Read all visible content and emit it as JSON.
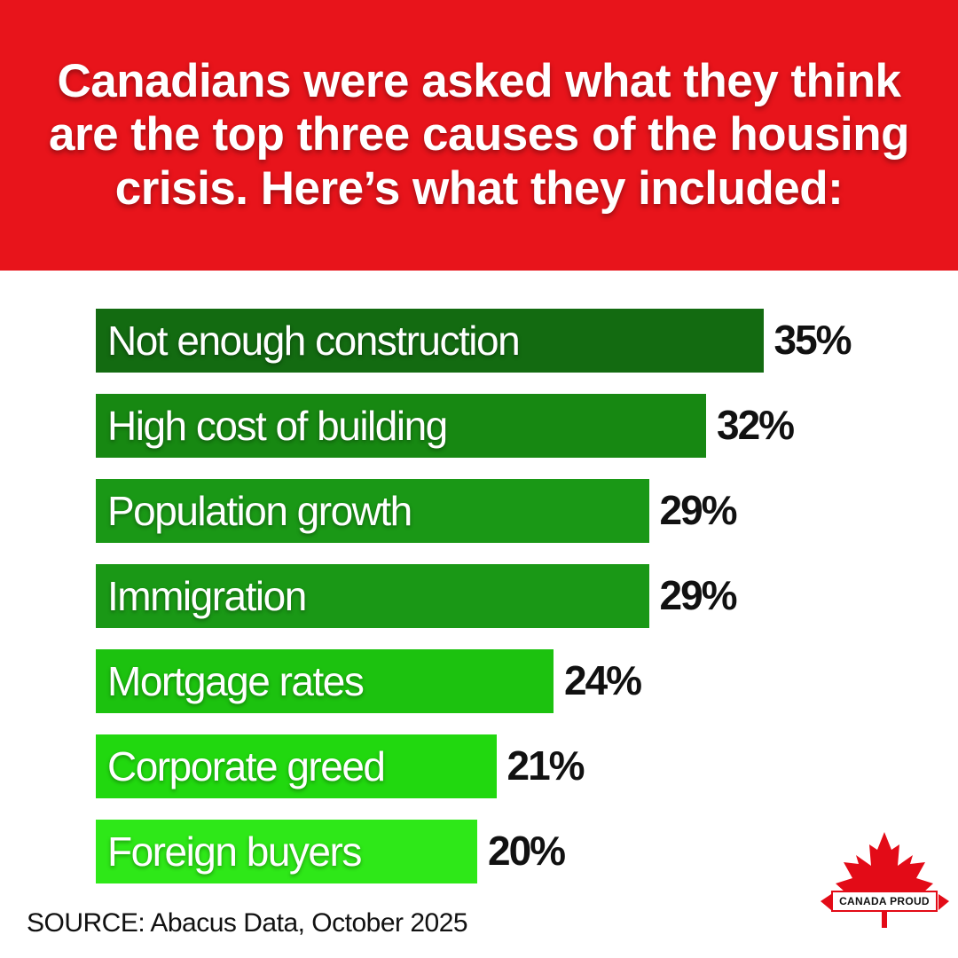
{
  "header": {
    "title": "Canadians were asked what they think are the top three causes of the housing crisis. Here’s what they included:",
    "background_color": "#e8141b"
  },
  "chart_data": {
    "type": "bar",
    "orientation": "horizontal",
    "categories": [
      "Not enough construction",
      "High cost of building",
      "Population growth",
      "Immigration",
      "Mortgage rates",
      "Corporate greed",
      "Foreign buyers"
    ],
    "values": [
      35,
      32,
      29,
      29,
      24,
      21,
      20
    ],
    "value_labels": [
      "35%",
      "32%",
      "29%",
      "29%",
      "24%",
      "21%",
      "20%"
    ],
    "unit": "%",
    "bar_colors": [
      "#136b11",
      "#178812",
      "#1a9816",
      "#1a9816",
      "#1cc20f",
      "#21d80f",
      "#2ee818"
    ],
    "grid": false,
    "legend": "none",
    "title": "",
    "xlabel": "",
    "ylabel": ""
  },
  "footer": {
    "source": "SOURCE: Abacus Data, October 2025"
  },
  "logo": {
    "text": "CANADA PROUD",
    "icon": "maple-leaf-icon",
    "color": "#e30b17"
  }
}
